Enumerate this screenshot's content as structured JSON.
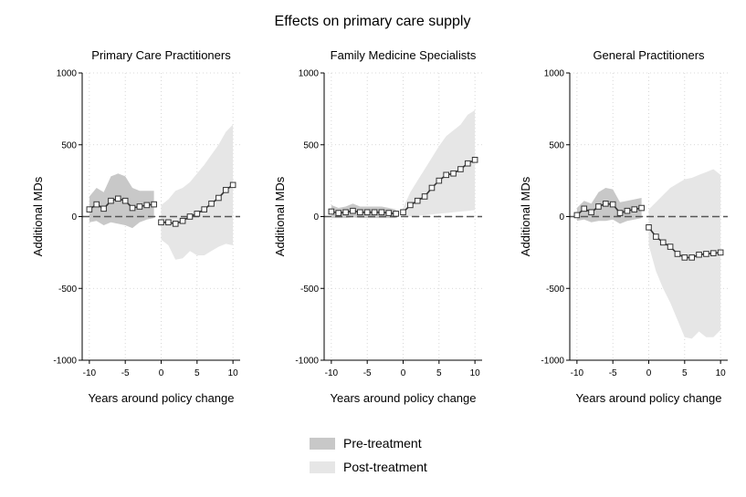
{
  "figure": {
    "title": "Effects on primary care supply",
    "legend": {
      "placement": "bottom-center",
      "items": [
        {
          "label": "Pre-treatment",
          "color": "#c8c8c8"
        },
        {
          "label": "Post-treatment",
          "color": "#e6e6e6"
        }
      ]
    },
    "colors": {
      "line": "#333333",
      "marker": "#333333",
      "zero_line": "#555555",
      "grid": "#cccccc"
    }
  },
  "chart_data": [
    {
      "type": "line",
      "title": "Primary Care Practitioners",
      "xlabel": "Years around policy change",
      "ylabel": "Additional MDs",
      "xlim": [
        -11,
        11
      ],
      "ylim": [
        -1000,
        1000
      ],
      "xticks": [
        -10,
        -5,
        0,
        5,
        10
      ],
      "yticks": [
        -1000,
        -500,
        0,
        500,
        1000
      ],
      "grid": true,
      "pre": {
        "name": "Pre-treatment",
        "x": [
          -10,
          -9,
          -8,
          -7,
          -6,
          -5,
          -4,
          -3,
          -2,
          -1
        ],
        "y": [
          50,
          85,
          55,
          110,
          125,
          110,
          60,
          70,
          80,
          85
        ],
        "ci_low": [
          -40,
          -30,
          -60,
          -40,
          -50,
          -60,
          -80,
          -40,
          -20,
          -10
        ],
        "ci_high": [
          140,
          200,
          170,
          280,
          300,
          280,
          200,
          180,
          180,
          180
        ]
      },
      "post": {
        "name": "Post-treatment",
        "x": [
          0,
          1,
          2,
          3,
          4,
          5,
          6,
          7,
          8,
          9,
          10
        ],
        "y": [
          -40,
          -40,
          -50,
          -30,
          0,
          20,
          50,
          90,
          130,
          185,
          220
        ],
        "ci_low": [
          -160,
          -200,
          -300,
          -290,
          -240,
          -270,
          -270,
          -240,
          -210,
          -190,
          -200
        ],
        "ci_high": [
          80,
          120,
          180,
          200,
          240,
          300,
          360,
          430,
          500,
          590,
          640
        ]
      }
    },
    {
      "type": "line",
      "title": "Family Medicine Specialists",
      "xlabel": "Years around policy change",
      "ylabel": "Additional MDs",
      "xlim": [
        -11,
        11
      ],
      "ylim": [
        -1000,
        1000
      ],
      "xticks": [
        -10,
        -5,
        0,
        5,
        10
      ],
      "yticks": [
        -1000,
        -500,
        0,
        500,
        1000
      ],
      "grid": true,
      "pre": {
        "name": "Pre-treatment",
        "x": [
          -10,
          -9,
          -8,
          -7,
          -6,
          -5,
          -4,
          -3,
          -2,
          -1
        ],
        "y": [
          35,
          25,
          30,
          40,
          30,
          30,
          30,
          30,
          25,
          20
        ],
        "ci_low": [
          -10,
          -10,
          -10,
          -5,
          -10,
          -10,
          -10,
          -10,
          -10,
          -10
        ],
        "ci_high": [
          80,
          60,
          70,
          90,
          70,
          70,
          70,
          70,
          60,
          50
        ]
      },
      "post": {
        "name": "Post-treatment",
        "x": [
          0,
          1,
          2,
          3,
          4,
          5,
          6,
          7,
          8,
          9,
          10
        ],
        "y": [
          30,
          80,
          110,
          140,
          200,
          250,
          290,
          300,
          330,
          370,
          395
        ],
        "ci_low": [
          0,
          0,
          5,
          10,
          15,
          20,
          25,
          30,
          35,
          40,
          45
        ],
        "ci_high": [
          60,
          170,
          250,
          330,
          410,
          490,
          560,
          600,
          640,
          710,
          740
        ]
      }
    },
    {
      "type": "line",
      "title": "General Practitioners",
      "xlabel": "Years around policy change",
      "ylabel": "Additional MDs",
      "xlim": [
        -11,
        11
      ],
      "ylim": [
        -1000,
        1000
      ],
      "xticks": [
        -10,
        -5,
        0,
        5,
        10
      ],
      "yticks": [
        -1000,
        -500,
        0,
        500,
        1000
      ],
      "grid": true,
      "pre": {
        "name": "Pre-treatment",
        "x": [
          -10,
          -9,
          -8,
          -7,
          -6,
          -5,
          -4,
          -3,
          -2,
          -1
        ],
        "y": [
          10,
          55,
          30,
          70,
          90,
          85,
          25,
          40,
          50,
          60
        ],
        "ci_low": [
          -30,
          -20,
          -40,
          -30,
          -30,
          -20,
          -50,
          -30,
          -20,
          -10
        ],
        "ci_high": [
          60,
          110,
          90,
          170,
          200,
          190,
          100,
          110,
          120,
          130
        ]
      },
      "post": {
        "name": "Post-treatment",
        "x": [
          0,
          1,
          2,
          3,
          4,
          5,
          6,
          7,
          8,
          9,
          10
        ],
        "y": [
          -75,
          -140,
          -180,
          -210,
          -260,
          -285,
          -285,
          -265,
          -260,
          -255,
          -250
        ],
        "ci_low": [
          -200,
          -380,
          -500,
          -600,
          -720,
          -840,
          -850,
          -800,
          -840,
          -840,
          -790
        ],
        "ci_high": [
          50,
          100,
          150,
          200,
          230,
          260,
          270,
          290,
          310,
          330,
          290
        ]
      }
    }
  ]
}
